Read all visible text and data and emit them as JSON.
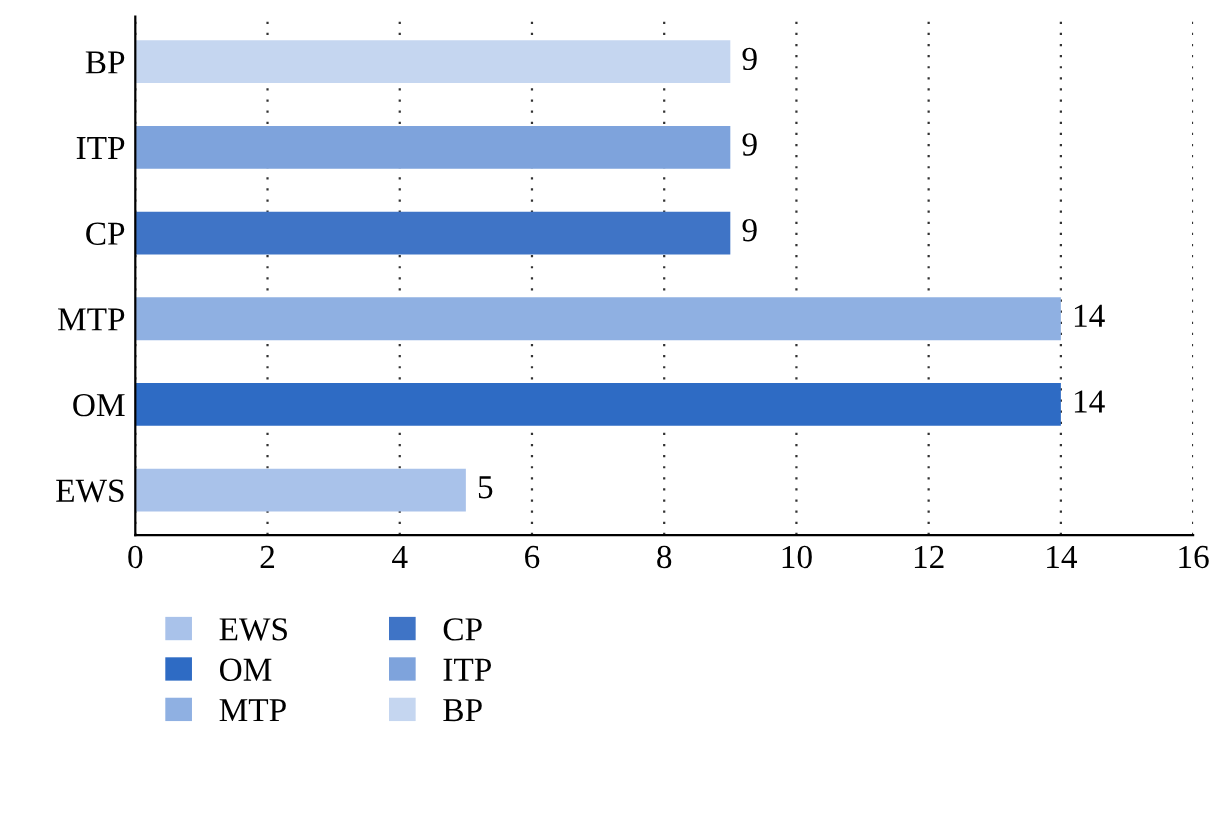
{
  "chart_data": {
    "type": "bar",
    "orientation": "horizontal",
    "categories": [
      "BP",
      "ITP",
      "CP",
      "MTP",
      "OM",
      "EWS"
    ],
    "series": [
      {
        "name": "EWS",
        "color": "#a9c2ea",
        "values": [
          null,
          null,
          null,
          null,
          null,
          5
        ]
      },
      {
        "name": "OM",
        "color": "#2e6bc4",
        "values": [
          null,
          null,
          null,
          null,
          14,
          null
        ]
      },
      {
        "name": "MTP",
        "color": "#8fb0e2",
        "values": [
          null,
          null,
          null,
          14,
          null,
          null
        ]
      },
      {
        "name": "CP",
        "color": "#3f74c6",
        "values": [
          null,
          null,
          9,
          null,
          null,
          null
        ]
      },
      {
        "name": "ITP",
        "color": "#7ea3dc",
        "values": [
          null,
          9,
          null,
          null,
          null,
          null
        ]
      },
      {
        "name": "BP",
        "color": "#c5d6f0",
        "values": [
          9,
          null,
          null,
          null,
          null,
          null
        ]
      }
    ],
    "xlim": [
      0,
      16
    ],
    "xticks": [
      0,
      2,
      4,
      6,
      8,
      10,
      12,
      14,
      16
    ],
    "grid": "x",
    "legend": "bottom",
    "data_labels": true
  }
}
